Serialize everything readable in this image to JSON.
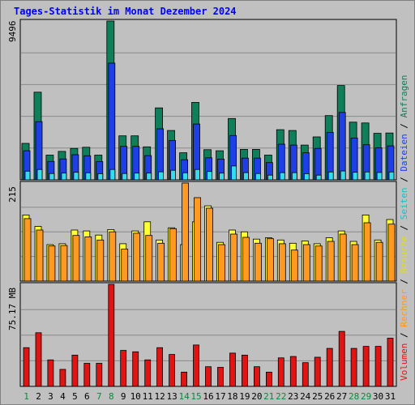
{
  "title": "Tages-Statistik im Monat Dezember 2024",
  "colors": {
    "anfragen": "#0e7f5a",
    "dateien": "#1e3fe6",
    "seiten": "#33ddee",
    "besuche": "#ffff33",
    "rechner": "#ff9922",
    "volumen": "#e11414",
    "weekend_label": "#0a8a3a"
  },
  "side_legend": {
    "volumen": "Volumen",
    "rechner": "Rechner",
    "besuche": "Besuche",
    "seiten": "Seiten",
    "dateien": "Dateien",
    "anfragen": "Anfragen",
    "sep": " / "
  },
  "chart_data": [
    {
      "type": "bar",
      "panel": "top",
      "ylabel": "9496",
      "ymax": 9496,
      "categories": [
        "1",
        "2",
        "3",
        "4",
        "5",
        "6",
        "7",
        "8",
        "9",
        "10",
        "11",
        "12",
        "13",
        "14",
        "15",
        "16",
        "17",
        "18",
        "19",
        "20",
        "21",
        "22",
        "23",
        "24",
        "25",
        "26",
        "27",
        "28",
        "29",
        "30",
        "31"
      ],
      "weekend_days": [
        1,
        7,
        8,
        14,
        15,
        21,
        22,
        28,
        29
      ],
      "series": [
        {
          "name": "Anfragen",
          "values": [
            2180,
            5240,
            1480,
            1700,
            1880,
            1950,
            1480,
            9496,
            2630,
            2630,
            1970,
            4300,
            2950,
            1620,
            4630,
            1800,
            1740,
            3670,
            1820,
            1820,
            1480,
            3000,
            2950,
            2080,
            2570,
            3840,
            5640,
            3450,
            3400,
            2780,
            2800
          ]
        },
        {
          "name": "Dateien",
          "values": [
            1740,
            3480,
            1100,
            1250,
            1500,
            1440,
            1090,
            6980,
            2000,
            2000,
            1450,
            3050,
            2350,
            1200,
            3340,
            1320,
            1240,
            2650,
            1300,
            1300,
            1030,
            2130,
            2080,
            1620,
            1880,
            2840,
            4030,
            2500,
            2100,
            1920,
            2030
          ]
        },
        {
          "name": "Seiten",
          "values": [
            520,
            620,
            380,
            400,
            450,
            420,
            370,
            620,
            380,
            400,
            400,
            480,
            570,
            420,
            620,
            500,
            400,
            830,
            430,
            380,
            280,
            430,
            430,
            370,
            280,
            470,
            530,
            450,
            470,
            440,
            470
          ]
        }
      ]
    },
    {
      "type": "bar",
      "panel": "middle",
      "ylabel": "215",
      "ymax": 215,
      "series": [
        {
          "name": "Besuche",
          "values": [
            145,
            120,
            80,
            82,
            112,
            110,
            101,
            113,
            82,
            110,
            130,
            90,
            117,
            80,
            130,
            165,
            85,
            112,
            108,
            92,
            95,
            90,
            83,
            88,
            82,
            95,
            110,
            87,
            145,
            90,
            135
          ]
        },
        {
          "name": "Rechner",
          "values": [
            137,
            112,
            77,
            78,
            100,
            97,
            90,
            108,
            70,
            105,
            100,
            83,
            115,
            215,
            183,
            160,
            80,
            103,
            96,
            83,
            93,
            82,
            68,
            80,
            77,
            87,
            103,
            80,
            128,
            85,
            125
          ]
        }
      ]
    },
    {
      "type": "bar",
      "panel": "bottom",
      "ylabel": "75.17 MB",
      "ymax": 75.17,
      "series": [
        {
          "name": "Volumen",
          "values": [
            28.5,
            39.5,
            19.5,
            12.5,
            23,
            17,
            17,
            75.17,
            26.5,
            25.5,
            19.5,
            28.5,
            23.5,
            10.5,
            30.5,
            14.5,
            14,
            24.5,
            23,
            14.5,
            10.5,
            21,
            22,
            17.5,
            21.5,
            28,
            40.5,
            28,
            29.5,
            29.5,
            35.5
          ]
        }
      ]
    }
  ]
}
